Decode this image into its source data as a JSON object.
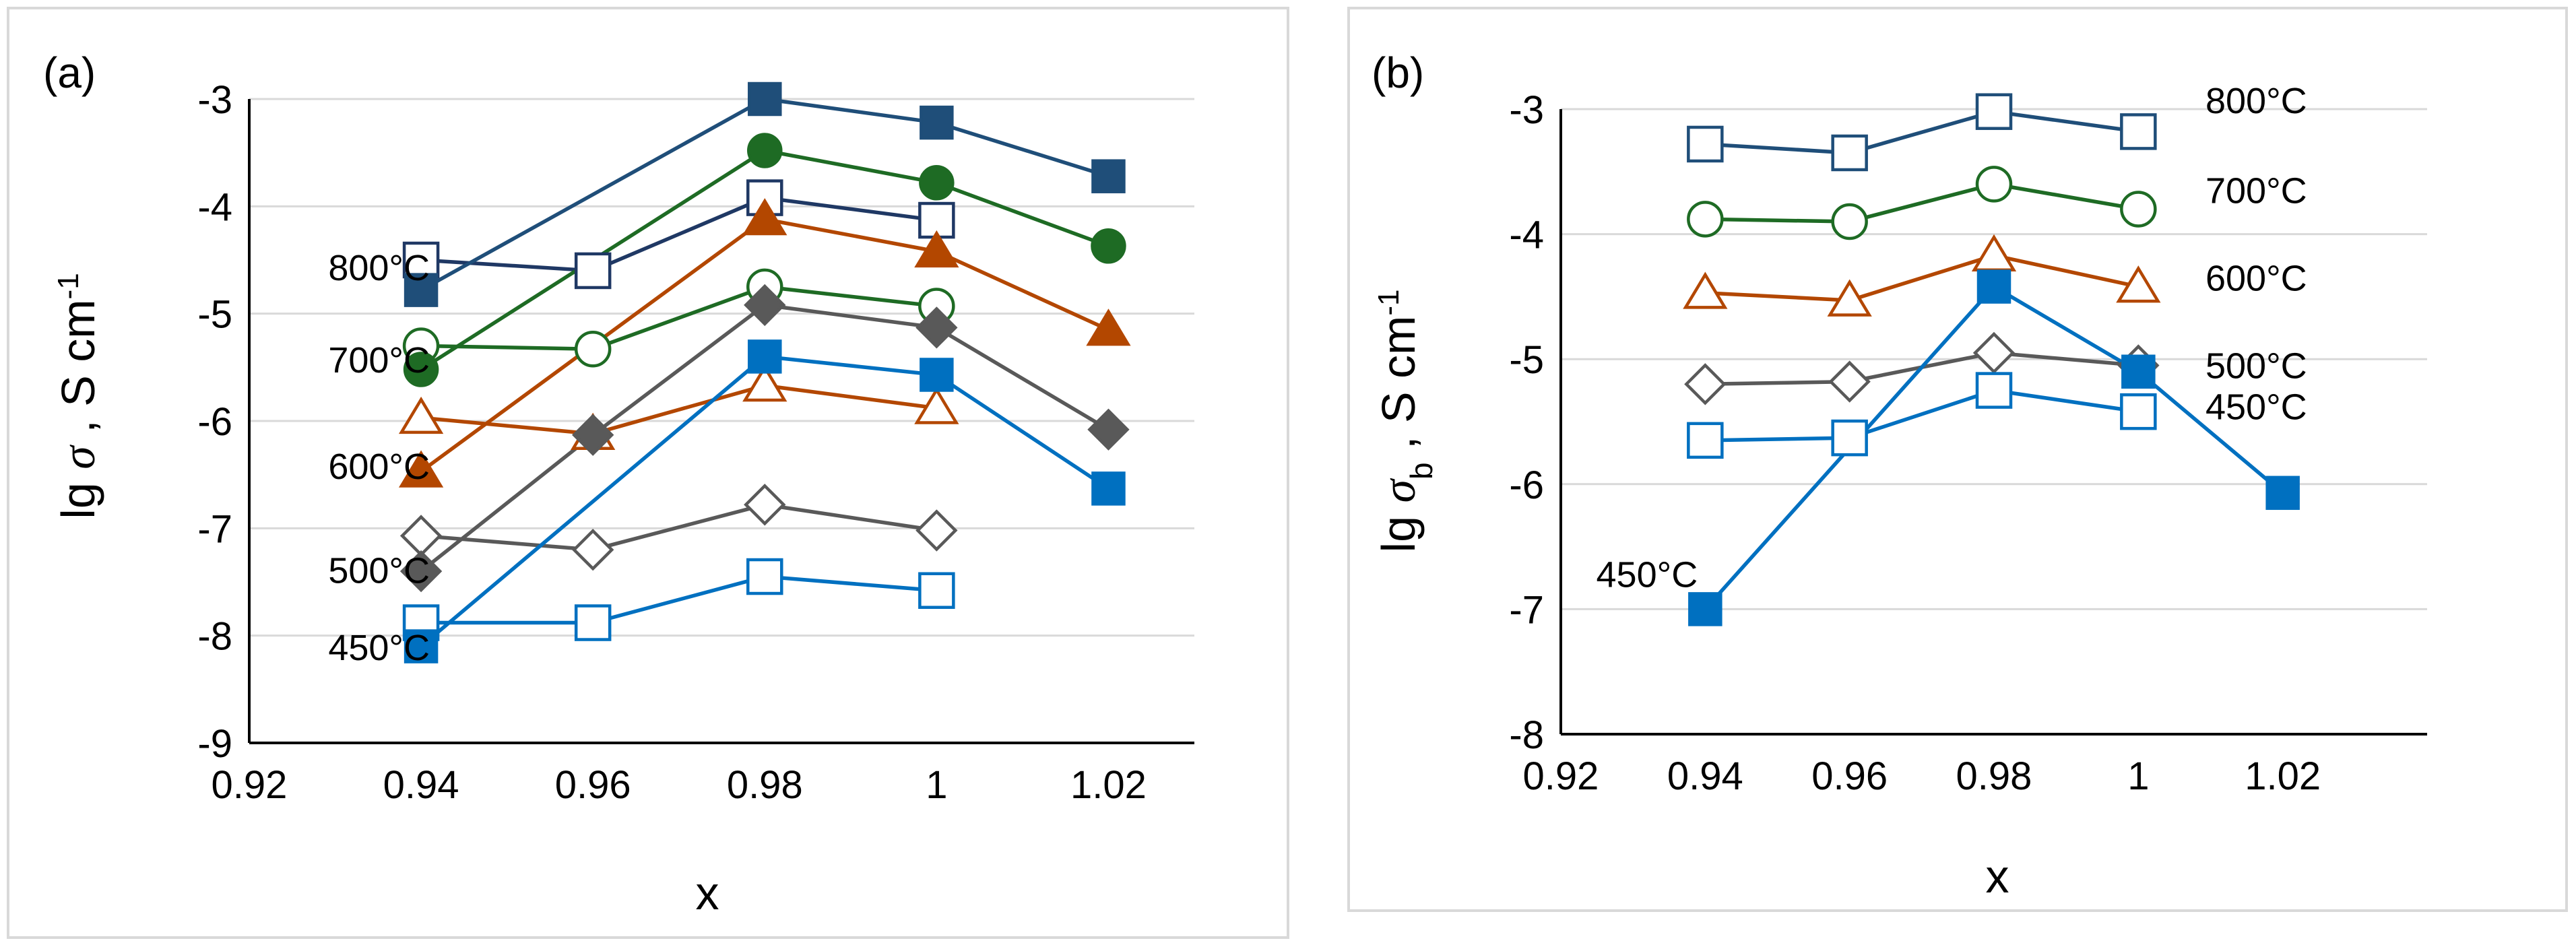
{
  "chart_data": [
    {
      "type": "line",
      "panel_label": "(a)",
      "xlabel": "x",
      "ylabel": {
        "prefix": "lg ",
        "symbol": "σ",
        "sub": "",
        "suffix": " ,  S cm",
        "sup": "-1"
      },
      "xlim": [
        0.92,
        1.03
      ],
      "ylim": [
        -9,
        -3
      ],
      "xticks": [
        0.92,
        0.94,
        0.96,
        0.98,
        1.0,
        1.02
      ],
      "xtick_labels": [
        "0.92",
        "0.94",
        "0.96",
        "0.98",
        "1",
        "1.02"
      ],
      "yticks": [
        -9,
        -8,
        -7,
        -6,
        -5,
        -4,
        -3
      ],
      "ytick_labels": [
        "-9",
        "-8",
        "-7",
        "-6",
        "-5",
        "-4",
        "-3"
      ],
      "grid": "horizontal",
      "series": [
        {
          "x": [
            0.94,
            0.96,
            0.98,
            1.0
          ],
          "y": [
            -4.5,
            -4.6,
            -3.92,
            -4.13
          ],
          "color": "#1f3864",
          "marker": "square",
          "filled": false
        },
        {
          "x": [
            0.94,
            0.98,
            1.0,
            1.02
          ],
          "y": [
            -4.78,
            -3.0,
            -3.22,
            -3.72
          ],
          "color": "#1f4e79",
          "marker": "square",
          "filled": true
        },
        {
          "x": [
            0.94,
            0.96,
            0.98,
            1.0
          ],
          "y": [
            -5.3,
            -5.33,
            -4.75,
            -4.93
          ],
          "color": "#1e6b24",
          "marker": "circle",
          "filled": false
        },
        {
          "x": [
            0.94,
            0.98,
            1.0,
            1.02
          ],
          "y": [
            -5.52,
            -3.48,
            -3.78,
            -4.37
          ],
          "color": "#1e6b24",
          "marker": "circle",
          "filled": true
        },
        {
          "x": [
            0.94,
            0.96,
            0.98,
            1.0
          ],
          "y": [
            -5.97,
            -6.12,
            -5.67,
            -5.88
          ],
          "color": "#b34700",
          "marker": "triangle",
          "filled": false
        },
        {
          "x": [
            0.94,
            0.98,
            1.0,
            1.02
          ],
          "y": [
            -6.47,
            -4.12,
            -4.42,
            -5.15
          ],
          "color": "#b34700",
          "marker": "triangle",
          "filled": true
        },
        {
          "x": [
            0.94,
            0.96,
            0.98,
            1.0
          ],
          "y": [
            -7.07,
            -7.2,
            -6.78,
            -7.02
          ],
          "color": "#595959",
          "marker": "diamond",
          "filled": false
        },
        {
          "x": [
            0.94,
            0.96,
            0.98,
            1.0,
            1.02
          ],
          "y": [
            -7.4,
            -6.13,
            -4.92,
            -5.13,
            -6.08
          ],
          "color": "#595959",
          "marker": "diamond",
          "filled": true
        },
        {
          "x": [
            0.94,
            0.96,
            0.98,
            1.0
          ],
          "y": [
            -7.88,
            -7.88,
            -7.45,
            -7.58
          ],
          "color": "#0070c0",
          "marker": "square",
          "filled": false
        },
        {
          "x": [
            0.94,
            0.98,
            1.0,
            1.02
          ],
          "y": [
            -8.1,
            -5.4,
            -5.57,
            -6.63
          ],
          "color": "#0070c0",
          "marker": "square",
          "filled": true
        }
      ],
      "annotations": [
        {
          "text": "800°C",
          "x": 0.9292,
          "y": -4.57
        },
        {
          "text": "700°C",
          "x": 0.9292,
          "y": -5.43
        },
        {
          "text": "600°C",
          "x": 0.9292,
          "y": -6.42
        },
        {
          "text": "500°C",
          "x": 0.9292,
          "y": -7.39
        },
        {
          "text": "450°C",
          "x": 0.9292,
          "y": -8.11
        }
      ]
    },
    {
      "type": "line",
      "panel_label": "(b)",
      "xlabel": "x",
      "ylabel": {
        "prefix": "lg ",
        "symbol": "σ",
        "sub": "b",
        "suffix": " ,  S cm",
        "sup": "-1"
      },
      "xlim": [
        0.92,
        1.04
      ],
      "ylim": [
        -8,
        -3
      ],
      "xticks": [
        0.92,
        0.94,
        0.96,
        0.98,
        1.0,
        1.02
      ],
      "xtick_labels": [
        "0.92",
        "0.94",
        "0.96",
        "0.98",
        "1",
        "1.02"
      ],
      "yticks": [
        -8,
        -7,
        -6,
        -5,
        -4,
        -3
      ],
      "ytick_labels": [
        "-8",
        "-7",
        "-6",
        "-5",
        "-4",
        "-3"
      ],
      "grid": "horizontal",
      "series": [
        {
          "x": [
            0.94,
            0.96,
            0.98,
            1.0
          ],
          "y": [
            -3.28,
            -3.35,
            -3.02,
            -3.18
          ],
          "color": "#1f4e79",
          "marker": "square",
          "filled": false
        },
        {
          "x": [
            0.94,
            0.96,
            0.98,
            1.0
          ],
          "y": [
            -3.88,
            -3.9,
            -3.6,
            -3.8
          ],
          "color": "#1e6b24",
          "marker": "circle",
          "filled": false
        },
        {
          "x": [
            0.94,
            0.96,
            0.98,
            1.0
          ],
          "y": [
            -4.47,
            -4.53,
            -4.17,
            -4.42
          ],
          "color": "#b34700",
          "marker": "triangle",
          "filled": false
        },
        {
          "x": [
            0.94,
            0.96,
            0.98,
            1.0
          ],
          "y": [
            -5.2,
            -5.18,
            -4.95,
            -5.05
          ],
          "color": "#595959",
          "marker": "diamond",
          "filled": false
        },
        {
          "x": [
            0.94,
            0.96,
            0.98,
            1.0
          ],
          "y": [
            -5.65,
            -5.63,
            -5.25,
            -5.42
          ],
          "color": "#0070c0",
          "marker": "square",
          "filled": false
        },
        {
          "x": [
            0.94,
            0.98,
            1.0,
            1.02
          ],
          "y": [
            -7.0,
            -4.42,
            -5.1,
            -6.07
          ],
          "color": "#0070c0",
          "marker": "square",
          "filled": true
        }
      ],
      "annotations": [
        {
          "text": "800°C",
          "x": 1.0093,
          "y": -2.93
        },
        {
          "text": "700°C",
          "x": 1.0093,
          "y": -3.65
        },
        {
          "text": "600°C",
          "x": 1.0093,
          "y": -4.35
        },
        {
          "text": "500°C",
          "x": 1.0093,
          "y": -5.05
        },
        {
          "text": "450°C",
          "x": 1.0093,
          "y": -5.38
        },
        {
          "text": "450°C",
          "x": 0.9249,
          "y": -6.72
        }
      ]
    }
  ]
}
